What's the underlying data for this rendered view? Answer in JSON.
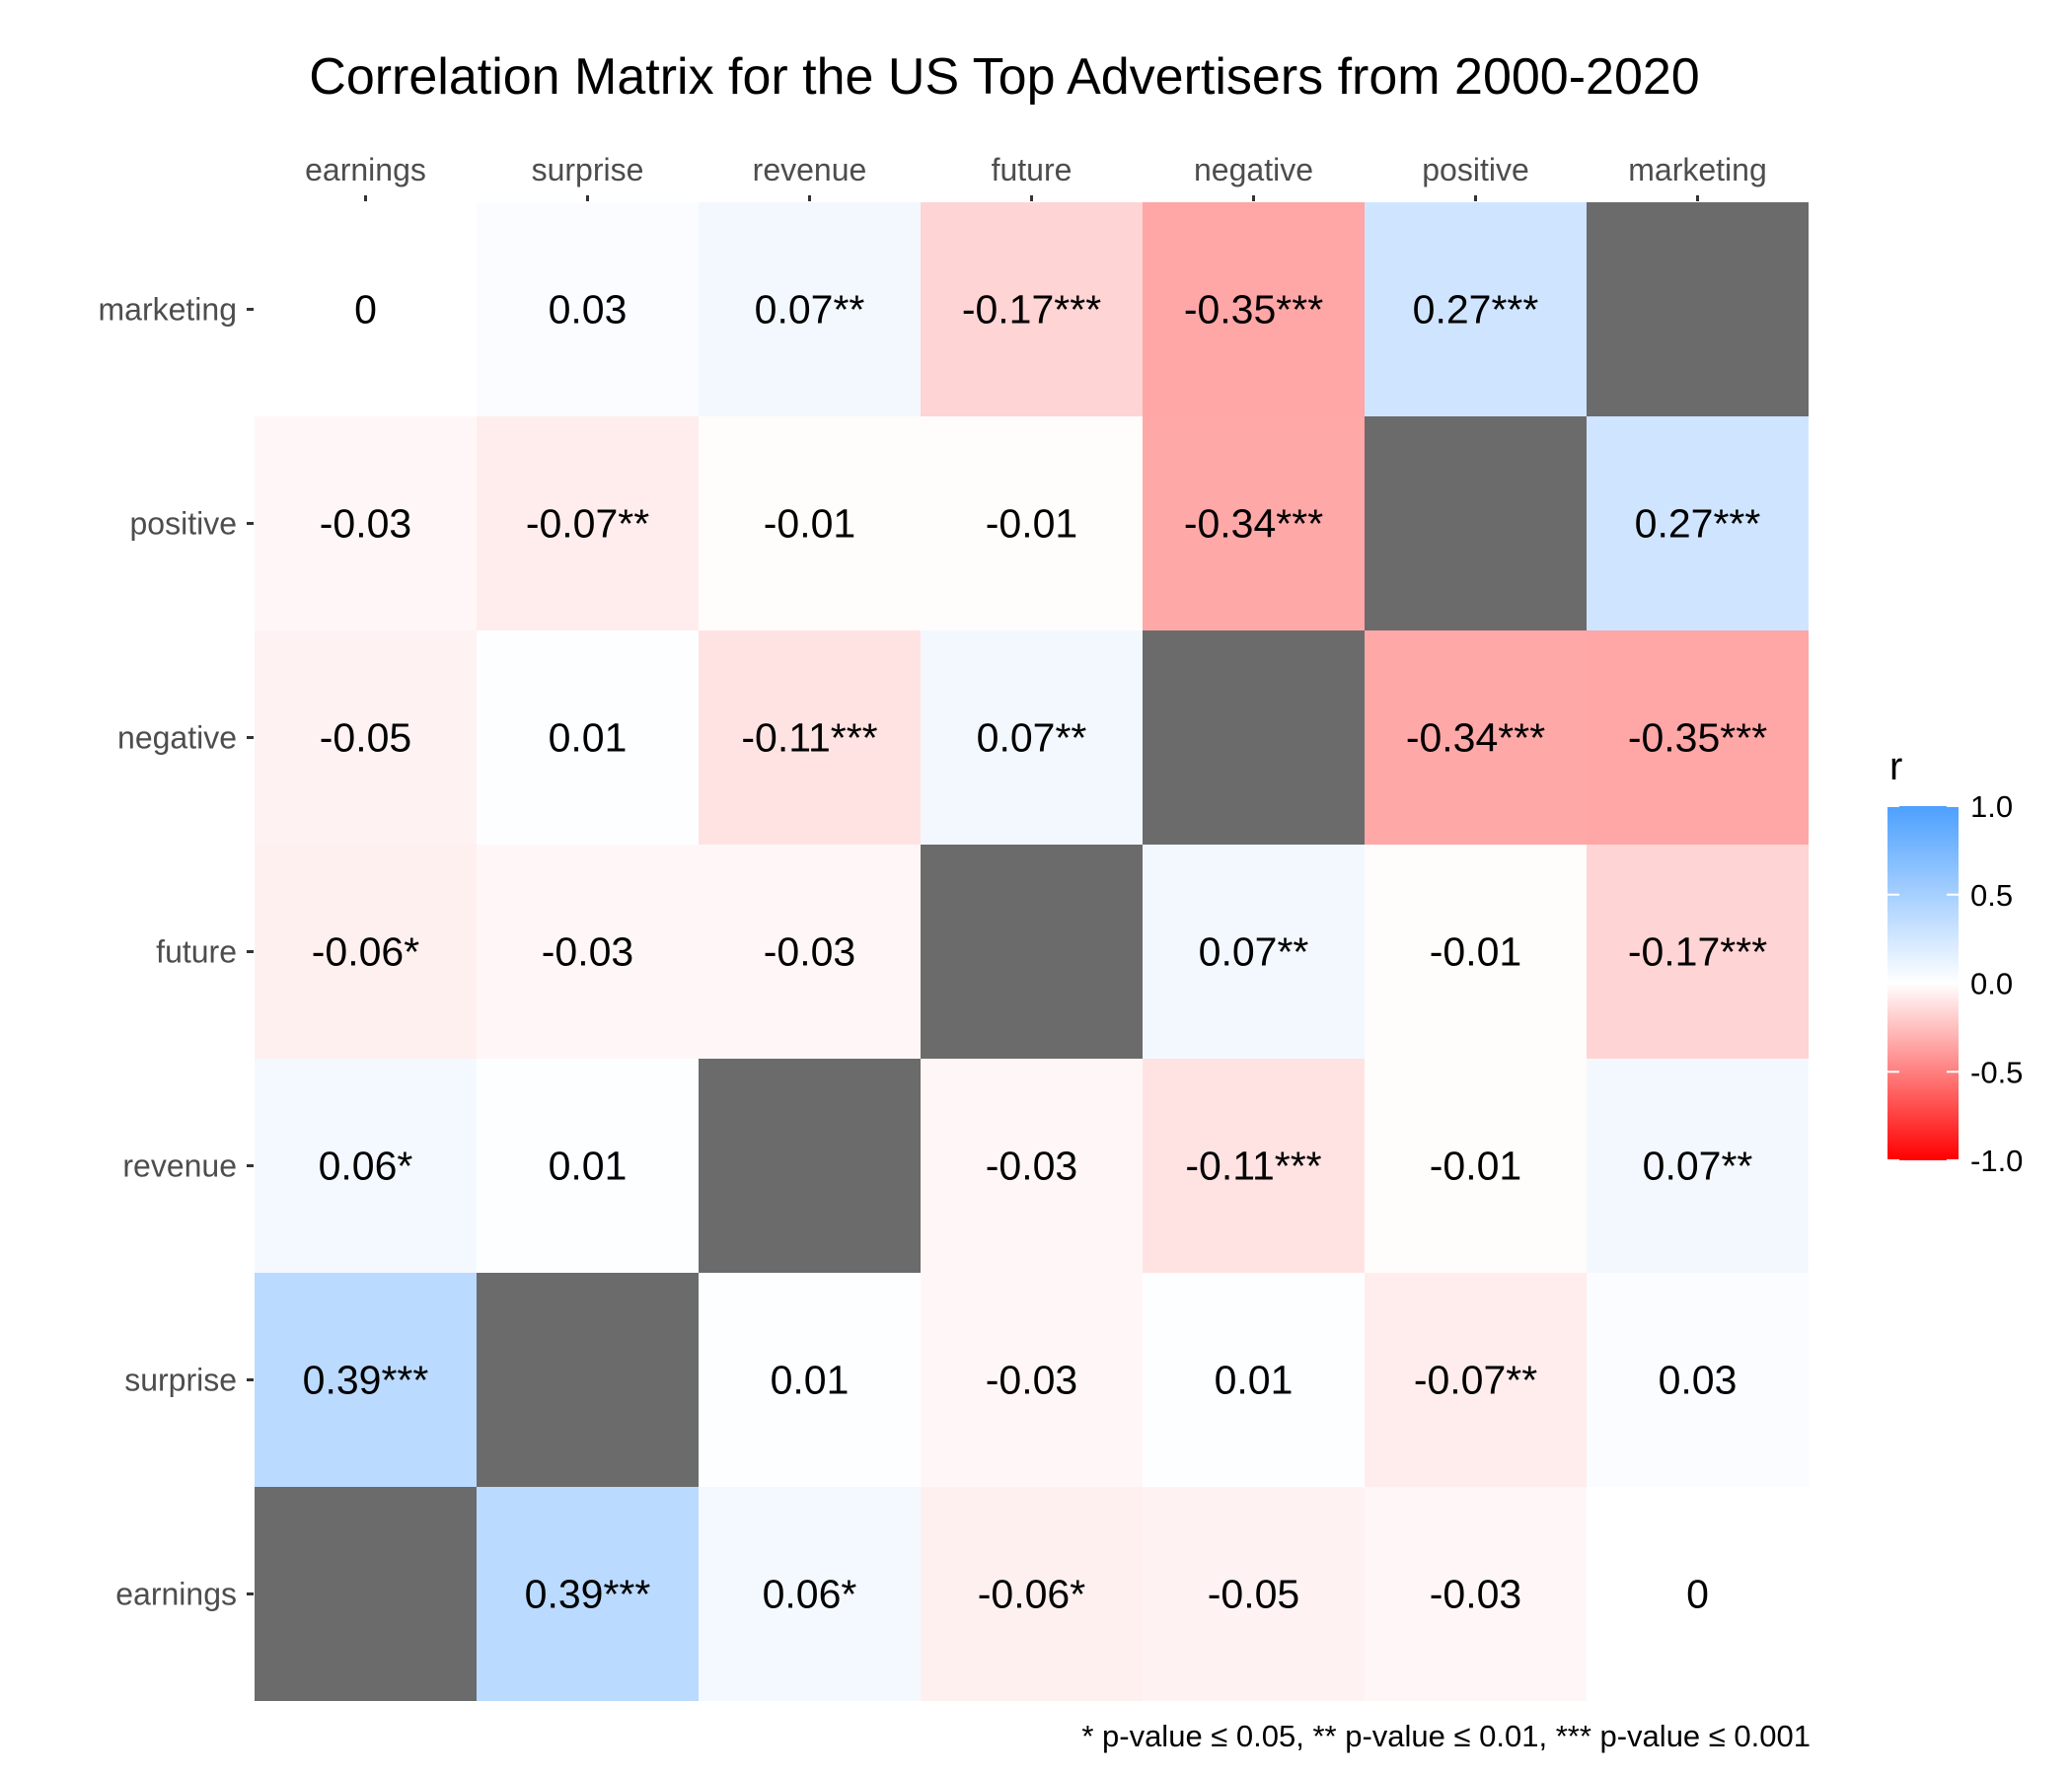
{
  "chart_data": {
    "type": "heatmap",
    "title": "Correlation Matrix for the US Top Advertisers from 2000-2020",
    "variables": [
      "earnings",
      "surprise",
      "revenue",
      "future",
      "negative",
      "positive",
      "marketing"
    ],
    "x_ticks": [
      "earnings",
      "surprise",
      "revenue",
      "future",
      "negative",
      "positive",
      "marketing"
    ],
    "y_ticks": [
      "earnings",
      "surprise",
      "revenue",
      "future",
      "negative",
      "positive",
      "marketing"
    ],
    "x_axis_position": "top",
    "matrix": [
      [
        null,
        0.39,
        0.06,
        -0.06,
        -0.05,
        -0.03,
        0
      ],
      [
        0.39,
        null,
        0.01,
        -0.03,
        0.01,
        -0.07,
        0.03
      ],
      [
        0.06,
        0.01,
        null,
        -0.03,
        -0.11,
        -0.01,
        0.07
      ],
      [
        -0.06,
        -0.03,
        -0.03,
        null,
        0.07,
        -0.01,
        -0.17
      ],
      [
        -0.05,
        0.01,
        -0.11,
        0.07,
        null,
        -0.34,
        -0.35
      ],
      [
        -0.03,
        -0.07,
        -0.01,
        -0.01,
        -0.34,
        null,
        0.27
      ],
      [
        0,
        0.03,
        0.07,
        -0.17,
        -0.35,
        0.27,
        null
      ]
    ],
    "labels": [
      [
        "",
        "0.39***",
        "0.06*",
        "-0.06*",
        "-0.05",
        "-0.03",
        "0"
      ],
      [
        "0.39***",
        "",
        "0.01",
        "-0.03",
        "0.01",
        "-0.07**",
        "0.03"
      ],
      [
        "0.06*",
        "0.01",
        "",
        "-0.03",
        "-0.11***",
        "-0.01",
        "0.07**"
      ],
      [
        "-0.06*",
        "-0.03",
        "-0.03",
        "",
        "0.07**",
        "-0.01",
        "-0.17***"
      ],
      [
        "-0.05",
        "0.01",
        "-0.11***",
        "0.07**",
        "",
        "-0.34***",
        "-0.35***"
      ],
      [
        "-0.03",
        "-0.07**",
        "-0.01",
        "-0.01",
        "-0.34***",
        "",
        "0.27***"
      ],
      [
        "0",
        "0.03",
        "0.07**",
        "-0.17***",
        "-0.35***",
        "0.27***",
        ""
      ]
    ],
    "diagonal_color": "#6b6b6b",
    "legend": {
      "title": "r",
      "position": "right",
      "ticks": [
        1.0,
        0.5,
        0.0,
        -0.5,
        -1.0
      ],
      "tick_labels": [
        "1.0",
        "0.5",
        "0.0",
        "-0.5",
        "-1.0"
      ],
      "range": [
        -1,
        1
      ],
      "color_high": "#4da0ff",
      "color_mid": "#ffffff",
      "color_low": "#ff0000"
    },
    "footnote": "* p-value  ≤  0.05, ** p-value  ≤  0.01, *** p-value  ≤  0.001",
    "grid": false
  }
}
